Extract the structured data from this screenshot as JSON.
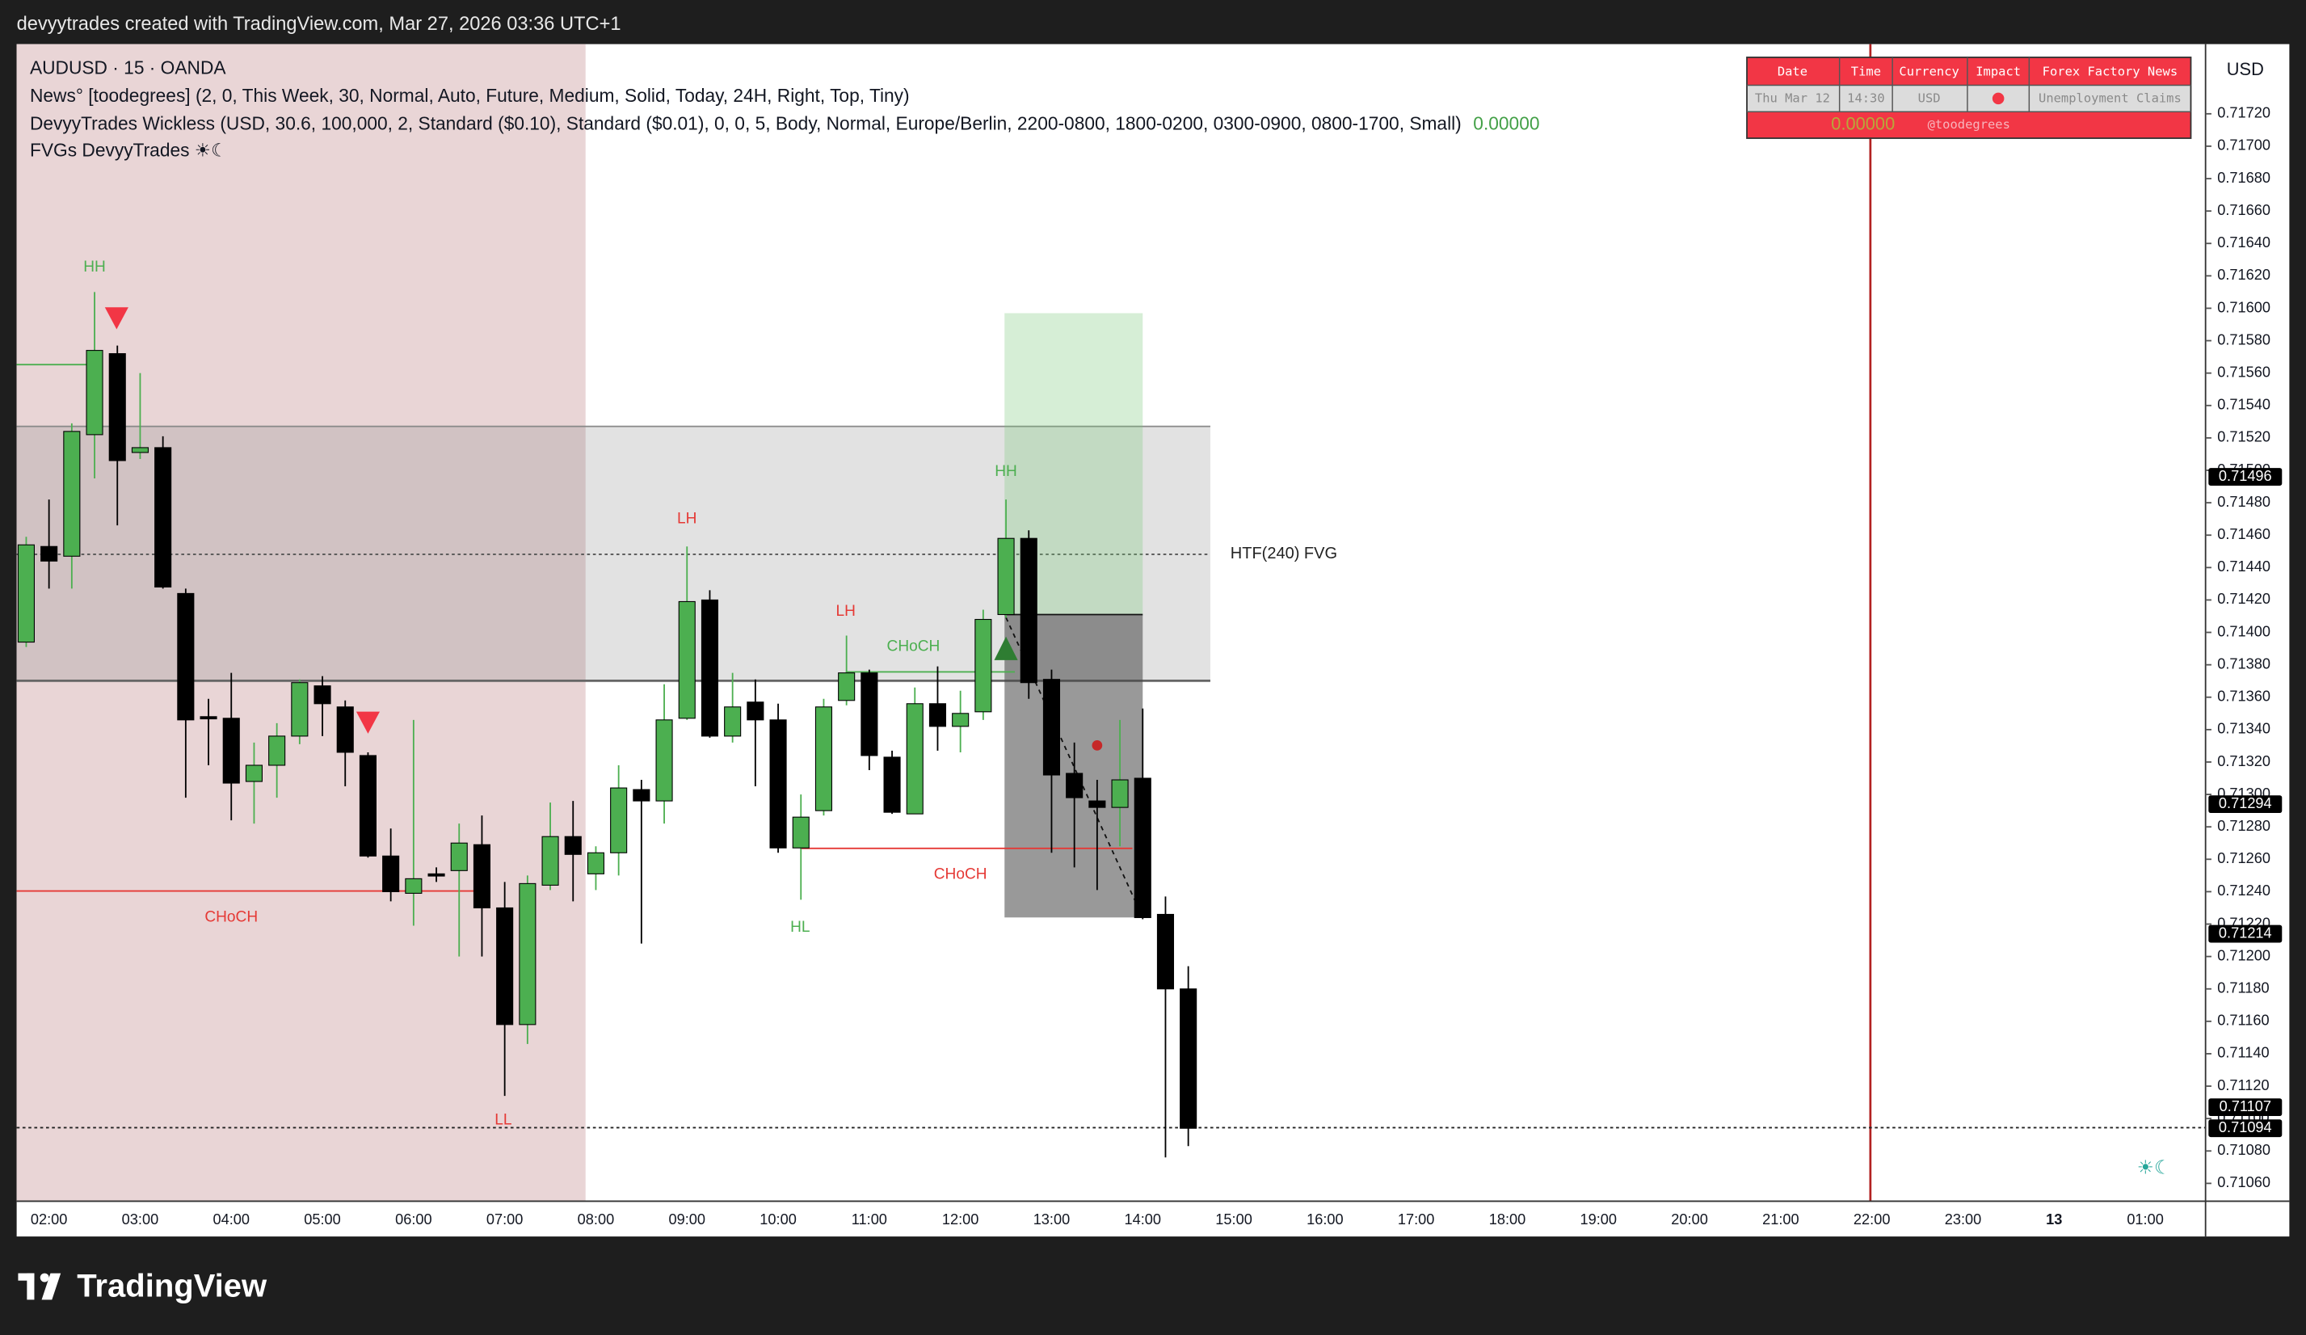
{
  "header": {
    "caption": "devyytrades created with TradingView.com, Mar 27, 2026 03:36 UTC+1"
  },
  "legend": {
    "symbol": "AUDUSD · 15 · OANDA",
    "lines": [
      "News° [toodegrees] (2, 0, This Week, 30, Normal, Auto, Future, Medium, Solid, Today, 24H, Right, Top, Tiny)",
      "DevyyTrades Wickless (USD, 30.6, 100,000, 2, Standard ($0.10), Standard ($0.01), 0, 0, 5, Body, Normal, Europe/Berlin, 2200-0800, 1800-0200, 0300-0900, 0800-1700, Small)",
      "FVGs DevyyTrades ☀︎☾"
    ],
    "indicator_value": "0.00000"
  },
  "news_table": {
    "headers": [
      "Date",
      "Time",
      "Currency",
      "Impact",
      "Forex Factory News"
    ],
    "row": [
      "Thu Mar 12",
      "14:30",
      "USD",
      "",
      "Unemployment Claims"
    ],
    "footer": [
      "0.00000",
      "@toodegrees"
    ]
  },
  "chart_data": {
    "type": "candlestick",
    "currency": "USD",
    "up_color": "#4caf50",
    "down_color": "#000000",
    "grid": false,
    "x": [
      "01:45",
      "02:00",
      "02:15",
      "02:30",
      "02:45",
      "03:00",
      "03:15",
      "03:30",
      "03:45",
      "04:00",
      "04:15",
      "04:30",
      "04:45",
      "05:00",
      "05:15",
      "05:30",
      "05:45",
      "06:00",
      "06:15",
      "06:30",
      "06:45",
      "07:00",
      "07:15",
      "07:30",
      "07:45",
      "08:00",
      "08:15",
      "08:30",
      "08:45",
      "09:00",
      "09:15",
      "09:30",
      "09:45",
      "10:00",
      "10:15",
      "10:30",
      "10:45",
      "11:00",
      "11:15",
      "11:30",
      "11:45",
      "12:00",
      "12:15",
      "12:30",
      "12:45",
      "13:00",
      "13:15",
      "13:30",
      "13:45",
      "14:00",
      "14:15",
      "14:30"
    ],
    "open": [
      0.71394,
      0.71453,
      0.71447,
      0.71522,
      0.71572,
      0.71511,
      0.71514,
      0.71424,
      0.71348,
      0.71347,
      0.71308,
      0.71318,
      0.71336,
      0.71367,
      0.71354,
      0.71324,
      0.71262,
      0.71239,
      0.71251,
      0.71253,
      0.71269,
      0.7123,
      0.71158,
      0.71244,
      0.71274,
      0.71251,
      0.71264,
      0.71303,
      0.71296,
      0.71347,
      0.7142,
      0.71336,
      0.71357,
      0.71346,
      0.71267,
      0.7129,
      0.71358,
      0.71375,
      0.71323,
      0.71288,
      0.71356,
      0.71342,
      0.71351,
      0.71411,
      0.71458,
      0.71371,
      0.71313,
      0.71296,
      0.71292,
      0.7131,
      0.71226,
      0.7118
    ],
    "high": [
      0.71459,
      0.71482,
      0.71529,
      0.7161,
      0.71577,
      0.7156,
      0.71521,
      0.71427,
      0.71359,
      0.71375,
      0.71332,
      0.71344,
      0.71371,
      0.71373,
      0.71358,
      0.71326,
      0.71279,
      0.71346,
      0.71255,
      0.71282,
      0.71287,
      0.71246,
      0.7125,
      0.71295,
      0.71296,
      0.71268,
      0.71318,
      0.71309,
      0.71368,
      0.71453,
      0.71426,
      0.71375,
      0.71371,
      0.71356,
      0.713,
      0.71359,
      0.71398,
      0.71377,
      0.71327,
      0.71366,
      0.71379,
      0.71364,
      0.71414,
      0.71482,
      0.71463,
      0.71377,
      0.71332,
      0.71309,
      0.71346,
      0.71353,
      0.71237,
      0.71194
    ],
    "low": [
      0.71391,
      0.71427,
      0.71427,
      0.71495,
      0.71466,
      0.71507,
      0.71427,
      0.71298,
      0.71318,
      0.71284,
      0.71282,
      0.71298,
      0.71331,
      0.71336,
      0.71305,
      0.71261,
      0.71234,
      0.71219,
      0.71246,
      0.712,
      0.712,
      0.71114,
      0.71146,
      0.71241,
      0.71234,
      0.71241,
      0.7125,
      0.71208,
      0.71282,
      0.71346,
      0.71335,
      0.71332,
      0.71305,
      0.71264,
      0.71235,
      0.71287,
      0.71355,
      0.71315,
      0.71288,
      0.71288,
      0.71327,
      0.71326,
      0.71346,
      0.71409,
      0.71359,
      0.71264,
      0.71255,
      0.71241,
      0.71268,
      0.71223,
      0.71076,
      0.71083
    ],
    "close": [
      0.71454,
      0.71444,
      0.71524,
      0.71574,
      0.71506,
      0.71514,
      0.71428,
      0.71346,
      0.71347,
      0.71307,
      0.71318,
      0.71336,
      0.71369,
      0.71356,
      0.71326,
      0.71262,
      0.7124,
      0.71248,
      0.7125,
      0.7127,
      0.7123,
      0.71158,
      0.71245,
      0.71274,
      0.71263,
      0.71264,
      0.71304,
      0.71296,
      0.71346,
      0.71419,
      0.71336,
      0.71354,
      0.71346,
      0.71267,
      0.71286,
      0.71354,
      0.71375,
      0.71324,
      0.71289,
      0.71356,
      0.71342,
      0.7135,
      0.71408,
      0.71458,
      0.71369,
      0.71312,
      0.71298,
      0.71292,
      0.71309,
      0.71224,
      0.7118,
      0.71094
    ],
    "ylim": [
      0.71049,
      0.71763
    ],
    "yticks": [
      {
        "value": 0.7172,
        "label": "0.71720"
      },
      {
        "value": 0.717,
        "label": "0.71700"
      },
      {
        "value": 0.7168,
        "label": "0.71680"
      },
      {
        "value": 0.7166,
        "label": "0.71660"
      },
      {
        "value": 0.7164,
        "label": "0.71640"
      },
      {
        "value": 0.7162,
        "label": "0.71620"
      },
      {
        "value": 0.716,
        "label": "0.71600"
      },
      {
        "value": 0.7158,
        "label": "0.71580"
      },
      {
        "value": 0.7156,
        "label": "0.71560"
      },
      {
        "value": 0.7154,
        "label": "0.71540"
      },
      {
        "value": 0.7152,
        "label": "0.71520"
      },
      {
        "value": 0.715,
        "label": "0.71500"
      },
      {
        "value": 0.7148,
        "label": "0.71480"
      },
      {
        "value": 0.7146,
        "label": "0.71460"
      },
      {
        "value": 0.7144,
        "label": "0.71440"
      },
      {
        "value": 0.7142,
        "label": "0.71420"
      },
      {
        "value": 0.714,
        "label": "0.71400"
      },
      {
        "value": 0.7138,
        "label": "0.71380"
      },
      {
        "value": 0.7136,
        "label": "0.71360"
      },
      {
        "value": 0.7134,
        "label": "0.71340"
      },
      {
        "value": 0.7132,
        "label": "0.71320"
      },
      {
        "value": 0.713,
        "label": "0.71300"
      },
      {
        "value": 0.7128,
        "label": "0.71280"
      },
      {
        "value": 0.7126,
        "label": "0.71260"
      },
      {
        "value": 0.7124,
        "label": "0.71240"
      },
      {
        "value": 0.7122,
        "label": "0.71220"
      },
      {
        "value": 0.712,
        "label": "0.71200"
      },
      {
        "value": 0.7118,
        "label": "0.71180"
      },
      {
        "value": 0.7116,
        "label": "0.71160"
      },
      {
        "value": 0.7114,
        "label": "0.71140"
      },
      {
        "value": 0.7112,
        "label": "0.71120"
      },
      {
        "value": 0.711,
        "label": "0.71100"
      },
      {
        "value": 0.7108,
        "label": "0.71080"
      },
      {
        "value": 0.7106,
        "label": "0.71060"
      }
    ],
    "price_badges": [
      {
        "value": 0.71496,
        "label": "0.71496"
      },
      {
        "value": 0.71294,
        "label": "0.71294"
      },
      {
        "value": 0.71214,
        "label": "0.71214"
      },
      {
        "value": 0.71107,
        "label": "0.71107"
      },
      {
        "value": 0.71094,
        "label": "0.71094"
      }
    ],
    "xtick_labels": [
      "02:00",
      "03:00",
      "04:00",
      "05:00",
      "06:00",
      "07:00",
      "08:00",
      "09:00",
      "10:00",
      "11:00",
      "12:00",
      "13:00",
      "14:00",
      "15:00",
      "16:00",
      "17:00",
      "18:00",
      "19:00",
      "20:00",
      "21:00",
      "22:00",
      "23:00",
      "13",
      "01:00"
    ],
    "annotations": [
      "HH",
      "LH",
      "LH",
      "CHoCH",
      "HH",
      "CHoCH",
      "HL",
      "CHoCH",
      "LL",
      "HTF(240) FVG"
    ]
  },
  "footer": {
    "brand": "TradingView"
  }
}
